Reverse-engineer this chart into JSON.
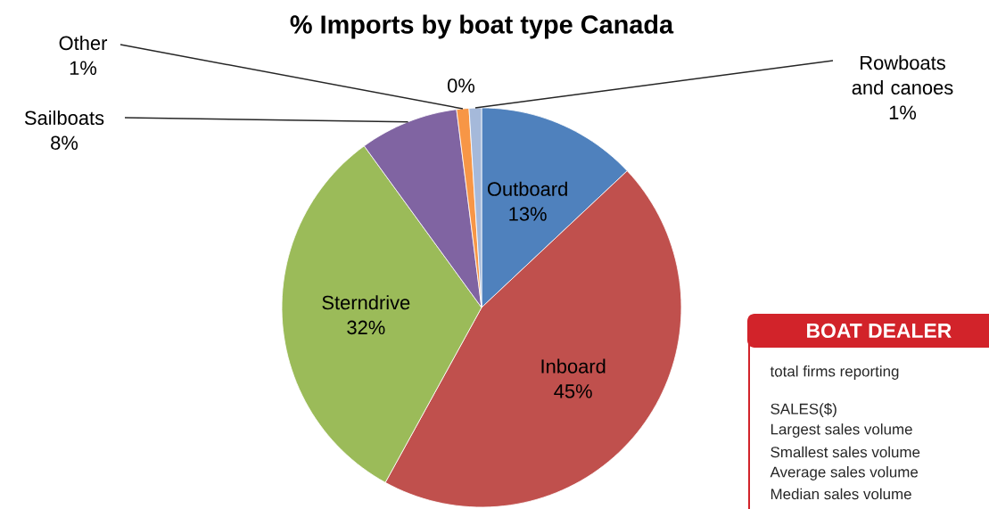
{
  "chart_data": [
    {
      "type": "pie",
      "title": "% Imports by boat type Canada",
      "categories": [
        "Outboard",
        "Inboard",
        "Sterndrive",
        "Sailboats",
        null,
        "Other",
        "Rowboats and canoes"
      ],
      "values": [
        13,
        45,
        32,
        8,
        0,
        1,
        1
      ],
      "value_labels": [
        "13%",
        "45%",
        "32%",
        "8%",
        "0%",
        "1%",
        "1%"
      ],
      "colors": [
        "#4f81bd",
        "#c0504d",
        "#9bbb59",
        "#8064a2",
        "#4bacc6",
        "#f79646",
        "#a5b9da"
      ]
    },
    {
      "type": "other",
      "title": "BOAT DEALER",
      "annotations": [
        "total firms reporting",
        "SALES($)",
        "Largest sales volume",
        "Smallest sales volume",
        "Average sales volume",
        "Median sales volume"
      ]
    }
  ]
}
